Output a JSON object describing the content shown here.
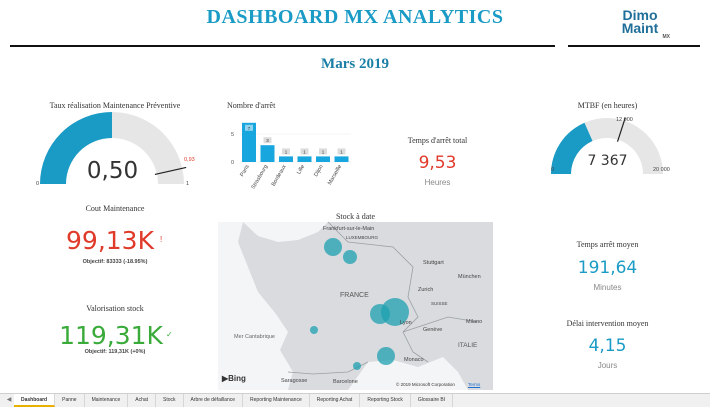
{
  "header": {
    "title": "DASHBOARD MX ANALYTICS",
    "logo_line1": "Dimo",
    "logo_line2": "Maint",
    "logo_sub": "MX",
    "month": "Mars 2019"
  },
  "maintenance_gauge": {
    "title": "Taux réalisation Maintenance Préventive",
    "value": "0,50",
    "fraction": 0.5,
    "target_label": "0,93",
    "target_fraction": 0.93,
    "min": "0",
    "max": "1"
  },
  "bar_chart": {
    "title": "Nombre d'arrêt",
    "y_tick_5": "5",
    "y_tick_0": "0"
  },
  "chart_data": {
    "type": "bar",
    "title": "Nombre d'arrêt",
    "categories": [
      "Paris",
      "Strasbourg",
      "Bordeaux",
      "Lille",
      "Dijon",
      "Marseille"
    ],
    "values": [
      7,
      3,
      1,
      1,
      1,
      1
    ],
    "ylim": [
      0,
      7.5
    ],
    "yticks": [
      0,
      5
    ]
  },
  "arret_total": {
    "title": "Temps d'arrêt total",
    "value": "9,53",
    "unit": "Heures"
  },
  "mtbf_gauge": {
    "title": "MTBF (en heures)",
    "value": "7 367",
    "fraction": 0.368,
    "target_label": "12 000",
    "target_fraction": 0.6,
    "min": "0",
    "max": "20 000"
  },
  "cout": {
    "title": "Cout Maintenance",
    "value": "99,13K",
    "flag": "!",
    "objective": "Objectif: 83333 (-18.95%)"
  },
  "valorisation": {
    "title": "Valorisation stock",
    "value": "119,31K",
    "check": "✓",
    "objective": "Objectif: 119,31K (+0%)"
  },
  "map": {
    "title": "Stock à date",
    "labels": {
      "frankfurt": "Frankfurt-sur-le-Main",
      "luxembourg": "LUXEMBOURG",
      "stuttgart": "Stuttgart",
      "munchen": "München",
      "france": "FRANCE",
      "zurich": "Zurich",
      "suisse": "SUISSE",
      "lyon": "Lyon",
      "geneve": "Genève",
      "milano": "Milano",
      "italie": "ITALIE",
      "mer_cantabrique": "Mer Cantabrique",
      "monaco": "Monaco",
      "saragosse": "Saragosse",
      "barcelone": "Barcelone"
    },
    "bing": "Bing",
    "copyright": "© 2019 Microsoft Corporation",
    "terms": "Terms"
  },
  "temps_moyen": {
    "title": "Temps arrêt moyen",
    "value": "191,64",
    "unit": "Minutes"
  },
  "delai": {
    "title": "Délai intervention moyen",
    "value": "4,15",
    "unit": "Jours"
  },
  "tabs": [
    "Dashboard",
    "Panne",
    "Maintenance",
    "Achat",
    "Stock",
    "Arbre de défaillance",
    "Reporting Maintenance",
    "Reporting Achat",
    "Reporting Stock",
    "Glossaire BI"
  ],
  "colors": {
    "accent": "#1a9bc5",
    "red": "#e03a2a",
    "green": "#3aab3a",
    "gauge_bg": "#e6e6e6"
  }
}
